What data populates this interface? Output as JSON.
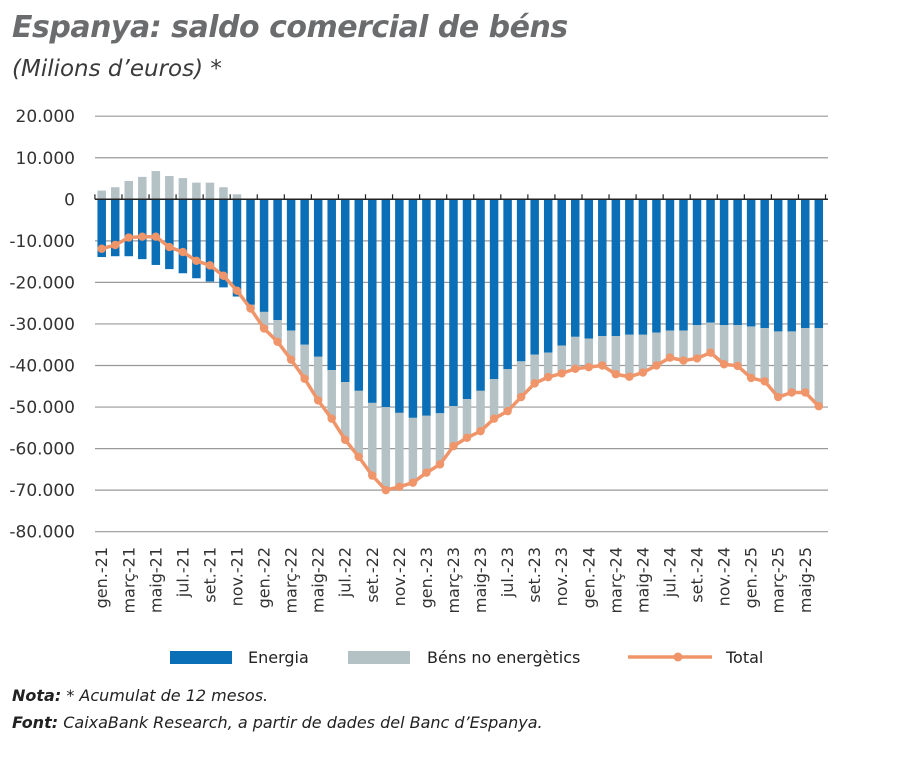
{
  "title": "Espanya: saldo comercial de béns",
  "subtitle": "(Milions d’euros) *",
  "chart_data": {
    "type": "bar",
    "stacked": true,
    "title": "Espanya: saldo comercial de béns",
    "subtitle": "(Milions d’euros) *",
    "ylim": [
      -80000,
      20000
    ],
    "yticks": [
      20000,
      10000,
      0,
      -10000,
      -20000,
      -30000,
      -40000,
      -50000,
      -60000,
      -70000,
      -80000
    ],
    "ytick_labels": [
      "20.000",
      "10.000",
      "0",
      "-10.000",
      "-20.000",
      "-30.000",
      "-40.000",
      "-50.000",
      "-60.000",
      "-70.000",
      "-80.000"
    ],
    "grid": true,
    "legend_position": "bottom",
    "xtick_labels": [
      "gen.-21",
      "març-21",
      "maig-21",
      "jul.-21",
      "set.-21",
      "nov.-21",
      "gen.-22",
      "març-22",
      "maig-22",
      "jul.-22",
      "set.-22",
      "nov.-22",
      "gen.-23",
      "març-23",
      "maig-23",
      "jul.-23",
      "set.-23",
      "nov.-23",
      "gen.-24",
      "març-24",
      "maig-24",
      "jul.-24",
      "set.-24",
      "nov.-24",
      "gen.-25",
      "març-25",
      "maig-25"
    ],
    "series": [
      {
        "name": "Energia",
        "type": "bar",
        "color": "#0a6fb6",
        "values": [
          -13900,
          -13700,
          -13700,
          -14400,
          -15800,
          -16800,
          -17800,
          -19000,
          -19800,
          -21200,
          -23400,
          -25400,
          -27100,
          -29100,
          -31600,
          -35000,
          -37900,
          -41100,
          -44000,
          -46100,
          -49000,
          -50000,
          -51400,
          -52600,
          -52100,
          -51500,
          -49800,
          -48100,
          -46100,
          -43300,
          -40900,
          -39000,
          -37400,
          -36900,
          -35200,
          -33100,
          -33500,
          -32900,
          -32900,
          -32600,
          -32600,
          -32100,
          -31600,
          -31600,
          -30300,
          -29700,
          -30300,
          -30300,
          -30600,
          -31000,
          -31800,
          -31800,
          -31000,
          -31000
        ]
      },
      {
        "name": "Béns no energètics",
        "type": "bar",
        "color": "#b4c1c5",
        "values": [
          2100,
          2900,
          4400,
          5400,
          6800,
          5600,
          5100,
          4000,
          4000,
          2900,
          1200,
          -900,
          -4000,
          -5200,
          -7000,
          -8200,
          -10500,
          -11700,
          -13900,
          -15900,
          -17500,
          -20000,
          -17800,
          -15600,
          -13700,
          -12300,
          -9600,
          -9300,
          -9700,
          -9500,
          -10100,
          -8600,
          -6900,
          -5900,
          -6700,
          -7700,
          -6900,
          -7100,
          -9200,
          -10100,
          -9100,
          -7900,
          -6500,
          -7200,
          -8000,
          -7200,
          -9400,
          -9800,
          -12400,
          -12800,
          -15800,
          -14700,
          -15500,
          -18800
        ]
      },
      {
        "name": "Total",
        "type": "line",
        "color": "#f0956a",
        "values": [
          -11900,
          -11000,
          -9200,
          -9000,
          -9000,
          -11500,
          -12700,
          -14800,
          -15900,
          -18400,
          -22000,
          -26300,
          -31100,
          -34300,
          -38600,
          -43200,
          -48400,
          -52800,
          -57900,
          -62000,
          -66500,
          -70000,
          -69200,
          -68200,
          -65800,
          -63800,
          -59400,
          -57400,
          -55800,
          -52800,
          -51000,
          -47600,
          -44300,
          -42800,
          -41900,
          -40800,
          -40400,
          -40000,
          -42100,
          -42700,
          -41700,
          -40000,
          -38100,
          -38800,
          -38300,
          -36900,
          -39700,
          -40100,
          -43000,
          -43800,
          -47600,
          -46500,
          -46500,
          -49800
        ]
      }
    ]
  },
  "notes": {
    "nota_label": "Nota:",
    "nota_text": " * Acumulat de 12 mesos.",
    "font_label": "Font:",
    "font_text": " CaixaBank Research, a partir de dades del Banc d’Espanya."
  }
}
